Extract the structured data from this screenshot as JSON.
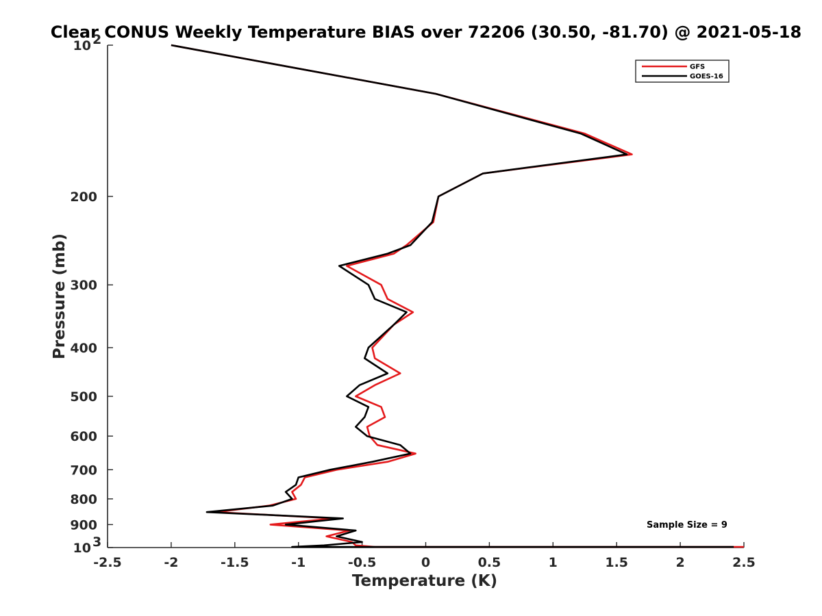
{
  "chart_data": {
    "type": "line",
    "title": "Clear CONUS Weekly Temperature BIAS over 72206 (30.50, -81.70) @ 2021-05-18",
    "xlabel": "Temperature (K)",
    "ylabel": "Pressure (mb)",
    "xlim": [
      -2.5,
      2.5
    ],
    "ylim": [
      100,
      1000
    ],
    "y_scale": "log",
    "y_reversed": true,
    "grid": false,
    "legend_position": "top-right",
    "x_ticks": [
      {
        "value": -2.5,
        "label": "-2.5"
      },
      {
        "value": -2,
        "label": "-2"
      },
      {
        "value": -1.5,
        "label": "-1.5"
      },
      {
        "value": -1,
        "label": "-1"
      },
      {
        "value": -0.5,
        "label": "-0.5"
      },
      {
        "value": 0,
        "label": "0"
      },
      {
        "value": 0.5,
        "label": "0.5"
      },
      {
        "value": 1,
        "label": "1"
      },
      {
        "value": 1.5,
        "label": "1.5"
      },
      {
        "value": 2,
        "label": "2"
      },
      {
        "value": 2.5,
        "label": "2.5"
      }
    ],
    "y_ticks": [
      {
        "value": 100,
        "label": "10",
        "sup": "2"
      },
      {
        "value": 200,
        "label": "200"
      },
      {
        "value": 300,
        "label": "300"
      },
      {
        "value": 400,
        "label": "400"
      },
      {
        "value": 500,
        "label": "500"
      },
      {
        "value": 600,
        "label": "600"
      },
      {
        "value": 700,
        "label": "700"
      },
      {
        "value": 800,
        "label": "800"
      },
      {
        "value": 900,
        "label": "900"
      },
      {
        "value": 1000,
        "label": "10",
        "sup": "3"
      }
    ],
    "series": [
      {
        "name": "GFS",
        "color": "#e41a1c",
        "points": [
          {
            "p": 100,
            "t": -2.0
          },
          {
            "p": 125,
            "t": 0.08
          },
          {
            "p": 150,
            "t": 1.25
          },
          {
            "p": 165,
            "t": 1.62
          },
          {
            "p": 180,
            "t": 0.45
          },
          {
            "p": 200,
            "t": 0.1
          },
          {
            "p": 225,
            "t": 0.06
          },
          {
            "p": 250,
            "t": -0.15
          },
          {
            "p": 260,
            "t": -0.25
          },
          {
            "p": 275,
            "t": -0.62
          },
          {
            "p": 300,
            "t": -0.35
          },
          {
            "p": 320,
            "t": -0.3
          },
          {
            "p": 340,
            "t": -0.1
          },
          {
            "p": 360,
            "t": -0.25
          },
          {
            "p": 400,
            "t": -0.42
          },
          {
            "p": 420,
            "t": -0.4
          },
          {
            "p": 450,
            "t": -0.2
          },
          {
            "p": 475,
            "t": -0.4
          },
          {
            "p": 500,
            "t": -0.55
          },
          {
            "p": 525,
            "t": -0.35
          },
          {
            "p": 550,
            "t": -0.32
          },
          {
            "p": 575,
            "t": -0.46
          },
          {
            "p": 600,
            "t": -0.44
          },
          {
            "p": 625,
            "t": -0.38
          },
          {
            "p": 650,
            "t": -0.08
          },
          {
            "p": 675,
            "t": -0.3
          },
          {
            "p": 700,
            "t": -0.7
          },
          {
            "p": 725,
            "t": -0.95
          },
          {
            "p": 750,
            "t": -0.98
          },
          {
            "p": 775,
            "t": -1.05
          },
          {
            "p": 800,
            "t": -1.02
          },
          {
            "p": 825,
            "t": -1.23
          },
          {
            "p": 850,
            "t": -1.65
          },
          {
            "p": 875,
            "t": -0.72
          },
          {
            "p": 900,
            "t": -1.22
          },
          {
            "p": 925,
            "t": -0.6
          },
          {
            "p": 950,
            "t": -0.78
          },
          {
            "p": 975,
            "t": -0.58
          },
          {
            "p": 990,
            "t": -0.55
          },
          {
            "p": 1000,
            "t": -0.4
          },
          {
            "p": 1010,
            "t": 2.5
          }
        ]
      },
      {
        "name": "GOES-16",
        "color": "#000000",
        "points": [
          {
            "p": 100,
            "t": -2.0
          },
          {
            "p": 125,
            "t": 0.08
          },
          {
            "p": 150,
            "t": 1.22
          },
          {
            "p": 165,
            "t": 1.58
          },
          {
            "p": 180,
            "t": 0.45
          },
          {
            "p": 200,
            "t": 0.1
          },
          {
            "p": 225,
            "t": 0.05
          },
          {
            "p": 250,
            "t": -0.12
          },
          {
            "p": 260,
            "t": -0.3
          },
          {
            "p": 275,
            "t": -0.68
          },
          {
            "p": 300,
            "t": -0.45
          },
          {
            "p": 320,
            "t": -0.4
          },
          {
            "p": 340,
            "t": -0.15
          },
          {
            "p": 360,
            "t": -0.25
          },
          {
            "p": 400,
            "t": -0.45
          },
          {
            "p": 420,
            "t": -0.48
          },
          {
            "p": 450,
            "t": -0.3
          },
          {
            "p": 475,
            "t": -0.52
          },
          {
            "p": 500,
            "t": -0.62
          },
          {
            "p": 525,
            "t": -0.45
          },
          {
            "p": 550,
            "t": -0.48
          },
          {
            "p": 575,
            "t": -0.55
          },
          {
            "p": 600,
            "t": -0.46
          },
          {
            "p": 625,
            "t": -0.2
          },
          {
            "p": 650,
            "t": -0.12
          },
          {
            "p": 675,
            "t": -0.42
          },
          {
            "p": 700,
            "t": -0.75
          },
          {
            "p": 725,
            "t": -1.0
          },
          {
            "p": 750,
            "t": -1.02
          },
          {
            "p": 775,
            "t": -1.1
          },
          {
            "p": 800,
            "t": -1.05
          },
          {
            "p": 825,
            "t": -1.2
          },
          {
            "p": 850,
            "t": -1.72
          },
          {
            "p": 875,
            "t": -0.65
          },
          {
            "p": 900,
            "t": -1.1
          },
          {
            "p": 925,
            "t": -0.55
          },
          {
            "p": 950,
            "t": -0.7
          },
          {
            "p": 975,
            "t": -0.5
          },
          {
            "p": 990,
            "t": -0.8
          },
          {
            "p": 1000,
            "t": -1.05
          },
          {
            "p": 1010,
            "t": 2.42
          }
        ]
      }
    ],
    "annotations": [
      "Sample Size = 9"
    ]
  }
}
